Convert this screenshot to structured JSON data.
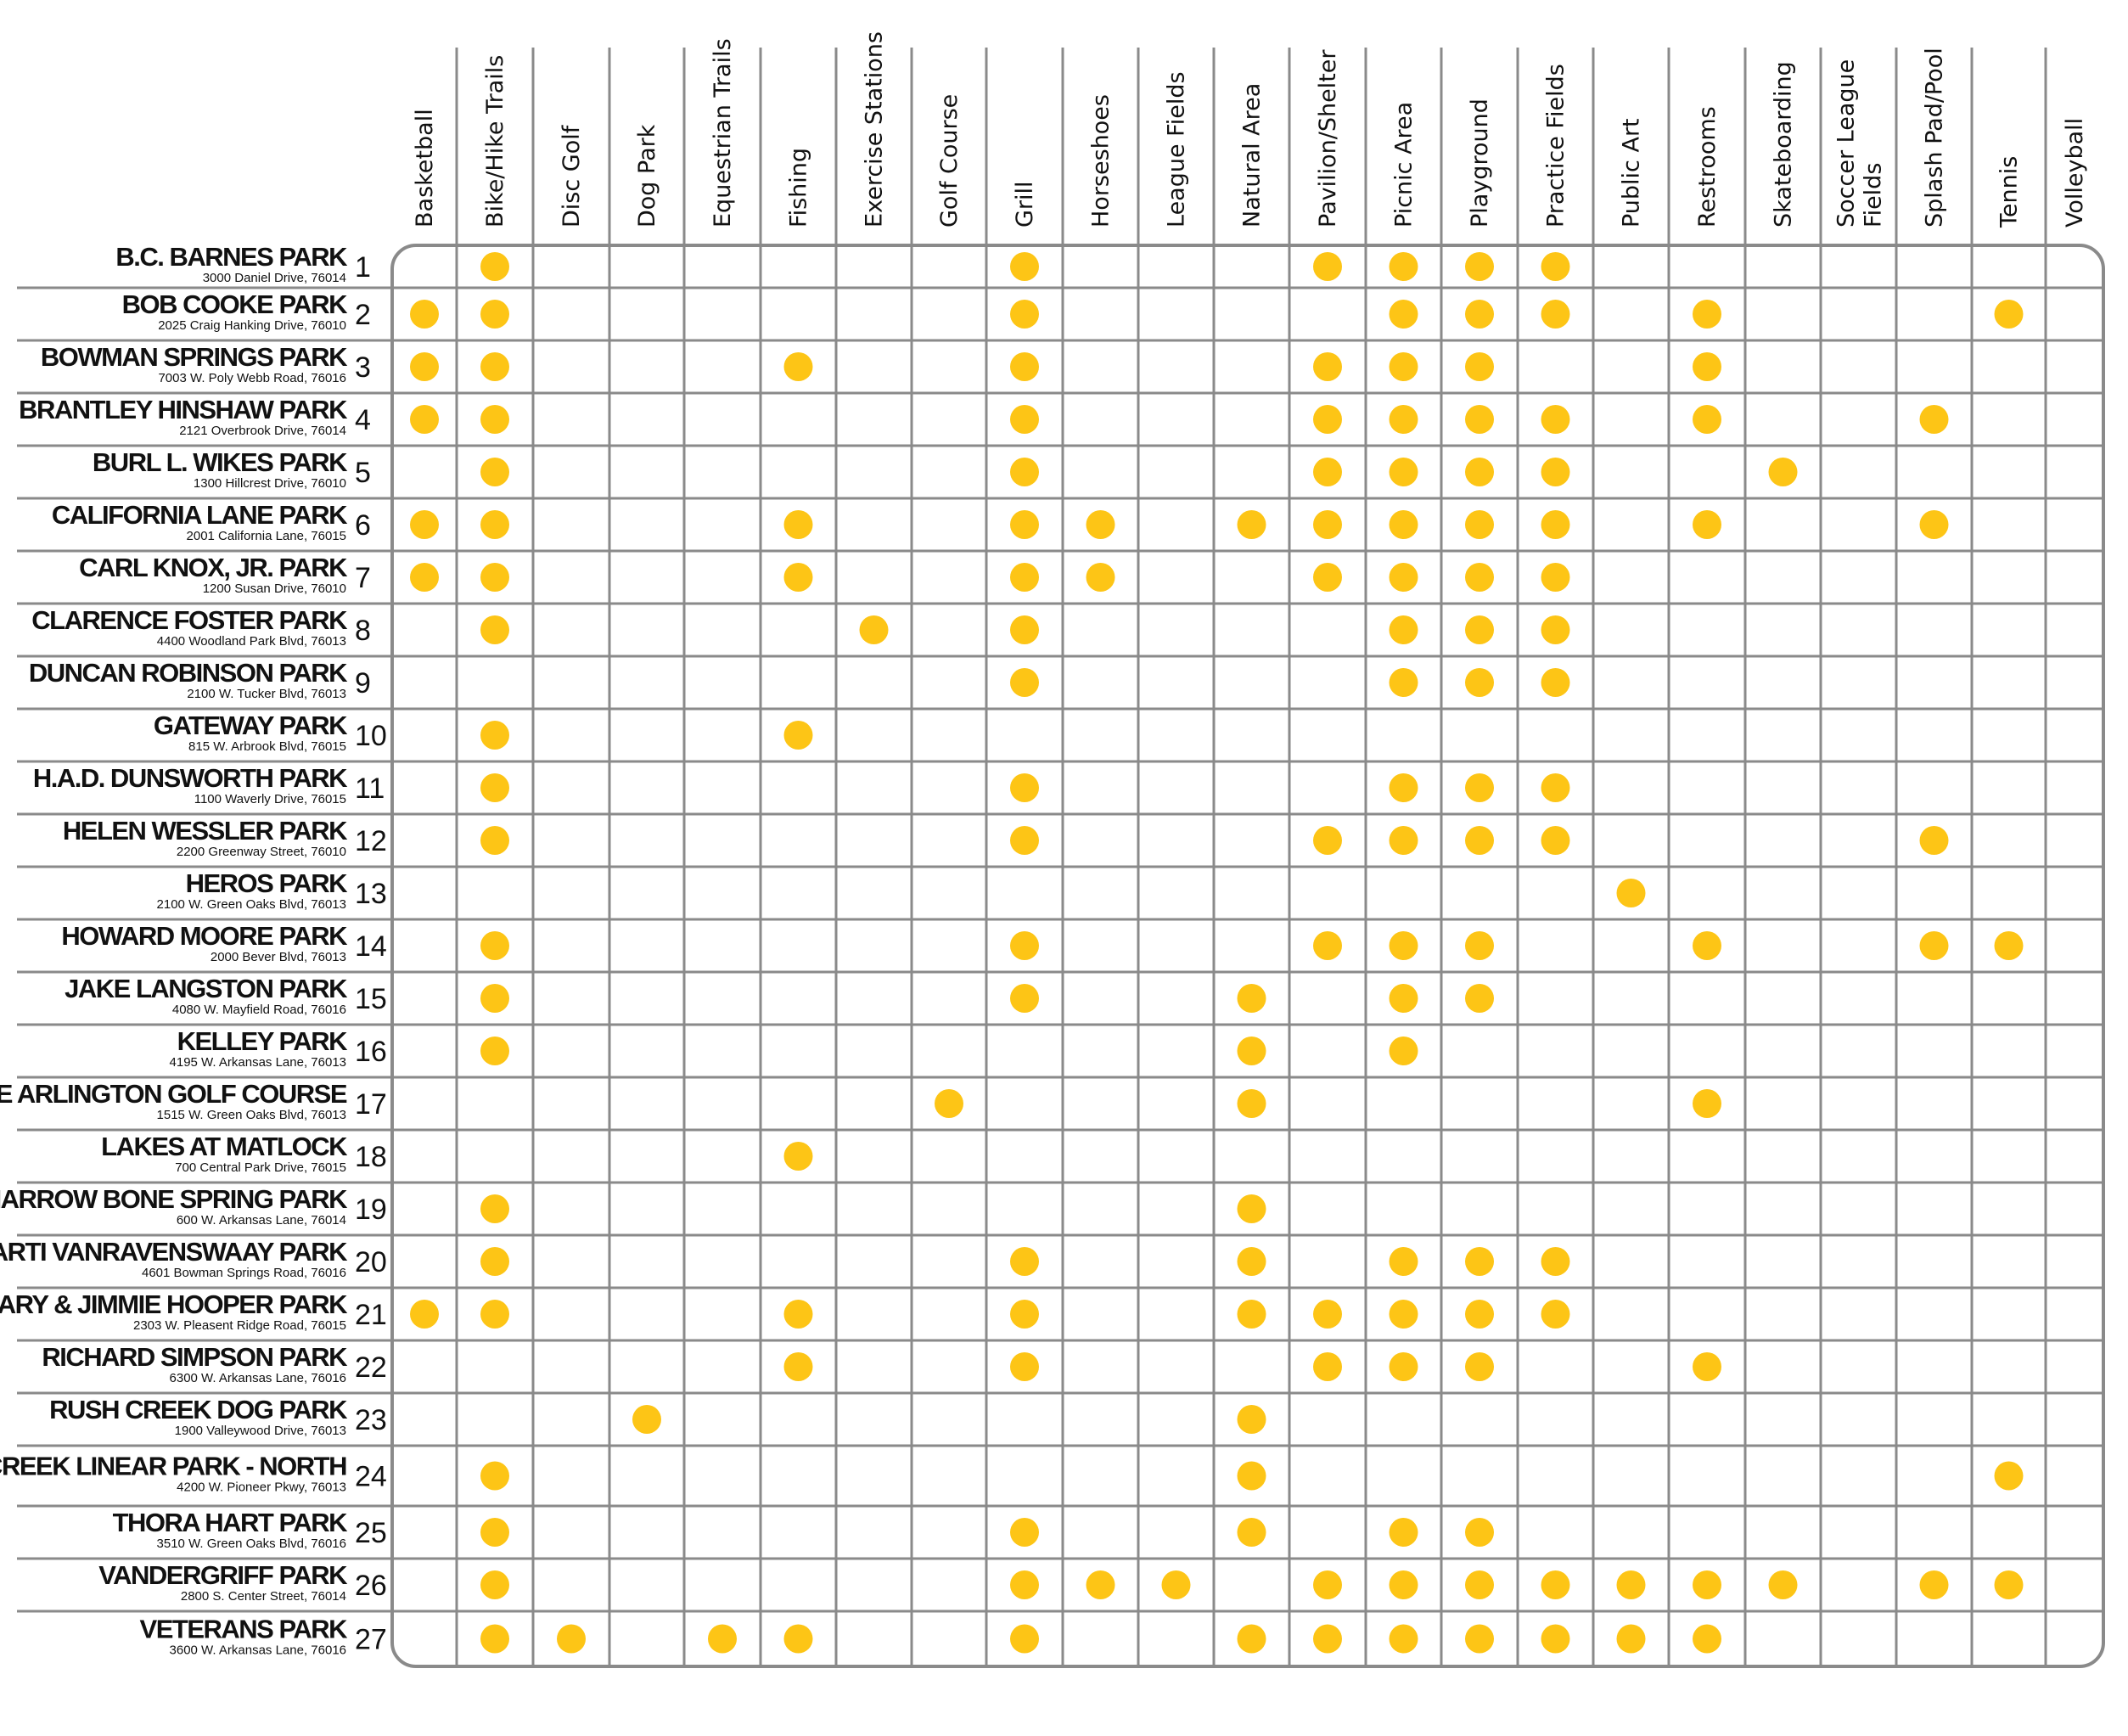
{
  "amenities": [
    "Basketball",
    "Bike/Hike Trails",
    "Disc Golf",
    "Dog Park",
    "Equestrian Trails",
    "Fishing",
    "Exercise Stations",
    "Golf Course",
    "Grill",
    "Horseshoes",
    "League Fields",
    "Natural Area",
    "Pavilion/Shelter",
    "Picnic Area",
    "Playground",
    "Practice Fields",
    "Public Art",
    "Restrooms",
    "Skateboarding",
    "Soccer League Fields",
    "Splash Pad/Pool",
    "Tennis",
    "Volleyball"
  ],
  "colors": {
    "dot": "#FDC516",
    "grid": "#8A8A8A",
    "text": "#111111"
  },
  "dot_icon": "filled-circle",
  "parks": [
    {
      "num": "1",
      "name": "B.C. BARNES PARK",
      "address": "3000 Daniel Drive, 76014",
      "amenities": [
        "Bike/Hike Trails",
        "Grill",
        "Pavilion/Shelter",
        "Picnic Area",
        "Playground",
        "Practice Fields"
      ]
    },
    {
      "num": "2",
      "name": "BOB COOKE PARK",
      "address": "2025 Craig Hanking Drive, 76010",
      "amenities": [
        "Basketball",
        "Bike/Hike Trails",
        "Grill",
        "Picnic Area",
        "Playground",
        "Practice Fields",
        "Restrooms",
        "Tennis"
      ]
    },
    {
      "num": "3",
      "name": "BOWMAN SPRINGS PARK",
      "address": "7003 W. Poly Webb Road, 76016",
      "amenities": [
        "Basketball",
        "Bike/Hike Trails",
        "Fishing",
        "Grill",
        "Pavilion/Shelter",
        "Picnic Area",
        "Playground",
        "Restrooms"
      ]
    },
    {
      "num": "4",
      "name": "BRANTLEY HINSHAW PARK",
      "address": "2121 Overbrook Drive, 76014",
      "amenities": [
        "Basketball",
        "Bike/Hike Trails",
        "Grill",
        "Pavilion/Shelter",
        "Picnic Area",
        "Playground",
        "Practice Fields",
        "Restrooms",
        "Splash Pad/Pool"
      ]
    },
    {
      "num": "5",
      "name": "BURL L. WIKES PARK",
      "address": "1300 Hillcrest Drive, 76010",
      "amenities": [
        "Bike/Hike Trails",
        "Grill",
        "Pavilion/Shelter",
        "Picnic Area",
        "Playground",
        "Practice Fields",
        "Skateboarding"
      ]
    },
    {
      "num": "6",
      "name": "CALIFORNIA LANE PARK",
      "address": "2001 California Lane, 76015",
      "amenities": [
        "Basketball",
        "Bike/Hike Trails",
        "Fishing",
        "Grill",
        "Horseshoes",
        "Natural Area",
        "Pavilion/Shelter",
        "Picnic Area",
        "Playground",
        "Practice Fields",
        "Restrooms",
        "Splash Pad/Pool"
      ]
    },
    {
      "num": "7",
      "name": "CARL KNOX, JR. PARK",
      "address": "1200 Susan Drive, 76010",
      "amenities": [
        "Basketball",
        "Bike/Hike Trails",
        "Fishing",
        "Grill",
        "Horseshoes",
        "Pavilion/Shelter",
        "Picnic Area",
        "Playground",
        "Practice Fields"
      ]
    },
    {
      "num": "8",
      "name": "CLARENCE FOSTER PARK",
      "address": "4400 Woodland Park Blvd, 76013",
      "amenities": [
        "Bike/Hike Trails",
        "Exercise Stations",
        "Grill",
        "Picnic Area",
        "Playground",
        "Practice Fields"
      ]
    },
    {
      "num": "9",
      "name": "DUNCAN ROBINSON PARK",
      "address": "2100 W. Tucker Blvd, 76013",
      "amenities": [
        "Grill",
        "Picnic Area",
        "Playground",
        "Practice Fields"
      ]
    },
    {
      "num": "10",
      "name": "GATEWAY PARK",
      "address": "815 W. Arbrook Blvd, 76015",
      "amenities": [
        "Bike/Hike Trails",
        "Fishing"
      ]
    },
    {
      "num": "11",
      "name": "H.A.D. DUNSWORTH PARK",
      "address": "1100 Waverly Drive, 76015",
      "amenities": [
        "Bike/Hike Trails",
        "Grill",
        "Picnic Area",
        "Playground",
        "Practice Fields"
      ]
    },
    {
      "num": "12",
      "name": "HELEN WESSLER PARK",
      "address": "2200 Greenway Street, 76010",
      "amenities": [
        "Bike/Hike Trails",
        "Grill",
        "Pavilion/Shelter",
        "Picnic Area",
        "Playground",
        "Practice Fields",
        "Splash Pad/Pool"
      ]
    },
    {
      "num": "13",
      "name": "HEROS PARK",
      "address": "2100 W. Green Oaks Blvd, 76013",
      "amenities": [
        "Public Art"
      ]
    },
    {
      "num": "14",
      "name": "HOWARD MOORE PARK",
      "address": "2000 Bever Blvd, 76013",
      "amenities": [
        "Bike/Hike Trails",
        "Grill",
        "Pavilion/Shelter",
        "Picnic Area",
        "Playground",
        "Restrooms",
        "Splash Pad/Pool",
        "Tennis"
      ]
    },
    {
      "num": "15",
      "name": "JAKE LANGSTON PARK",
      "address": "4080 W. Mayfield Road, 76016",
      "amenities": [
        "Bike/Hike Trails",
        "Grill",
        "Natural Area",
        "Picnic Area",
        "Playground"
      ]
    },
    {
      "num": "16",
      "name": "KELLEY PARK",
      "address": "4195 W. Arkansas Lane, 76013",
      "amenities": [
        "Bike/Hike Trails",
        "Natural Area",
        "Picnic Area"
      ]
    },
    {
      "num": "17",
      "name": "LAKE ARLINGTON GOLF COURSE",
      "address": "1515 W. Green Oaks Blvd, 76013",
      "amenities": [
        "Golf Course",
        "Natural Area",
        "Restrooms"
      ]
    },
    {
      "num": "18",
      "name": "LAKES AT MATLOCK",
      "address": "700 Central Park Drive, 76015",
      "amenities": [
        "Fishing"
      ]
    },
    {
      "num": "19",
      "name": "MARROW BONE SPRING PARK",
      "address": "600 W. Arkansas Lane, 76014",
      "amenities": [
        "Bike/Hike Trails",
        "Natural Area"
      ]
    },
    {
      "num": "20",
      "name": "MARTI VANRAVENSWAAY PARK",
      "address": "4601 Bowman Springs Road, 76016",
      "amenities": [
        "Bike/Hike Trails",
        "Grill",
        "Natural Area",
        "Picnic Area",
        "Playground",
        "Practice Fields"
      ]
    },
    {
      "num": "21",
      "name": "MARY & JIMMIE HOOPER PARK",
      "address": "2303 W. Pleasent Ridge Road, 76015",
      "amenities": [
        "Basketball",
        "Bike/Hike Trails",
        "Fishing",
        "Grill",
        "Natural Area",
        "Pavilion/Shelter",
        "Picnic Area",
        "Playground",
        "Practice Fields"
      ]
    },
    {
      "num": "22",
      "name": "RICHARD SIMPSON PARK",
      "address": "6300 W. Arkansas Lane, 76016",
      "amenities": [
        "Fishing",
        "Grill",
        "Pavilion/Shelter",
        "Picnic Area",
        "Playground",
        "Restrooms"
      ]
    },
    {
      "num": "23",
      "name": "RUSH CREEK DOG PARK",
      "address": "1900 Valleywood Drive, 76013",
      "amenities": [
        "Dog Park",
        "Natural Area"
      ]
    },
    {
      "num": "24",
      "name": "RUSH CREEK LINEAR PARK - NORTH",
      "address": "4200 W. Pioneer Pkwy, 76013",
      "amenities": [
        "Bike/Hike Trails",
        "Natural Area",
        "Tennis"
      ]
    },
    {
      "num": "25",
      "name": "THORA HART PARK",
      "address": "3510 W. Green Oaks Blvd, 76016",
      "amenities": [
        "Bike/Hike Trails",
        "Grill",
        "Natural Area",
        "Picnic Area",
        "Playground"
      ]
    },
    {
      "num": "26",
      "name": "VANDERGRIFF PARK",
      "address": "2800 S. Center Street, 76014",
      "amenities": [
        "Bike/Hike Trails",
        "Grill",
        "Horseshoes",
        "League Fields",
        "Pavilion/Shelter",
        "Picnic Area",
        "Playground",
        "Practice Fields",
        "Public Art",
        "Restrooms",
        "Skateboarding",
        "Splash Pad/Pool",
        "Tennis"
      ]
    },
    {
      "num": "27",
      "name": "VETERANS PARK",
      "address": "3600 W. Arkansas Lane, 76016",
      "amenities": [
        "Bike/Hike Trails",
        "Disc Golf",
        "Equestrian Trails",
        "Fishing",
        "Grill",
        "Natural Area",
        "Pavilion/Shelter",
        "Picnic Area",
        "Playground",
        "Practice Fields",
        "Public Art",
        "Restrooms"
      ]
    }
  ]
}
